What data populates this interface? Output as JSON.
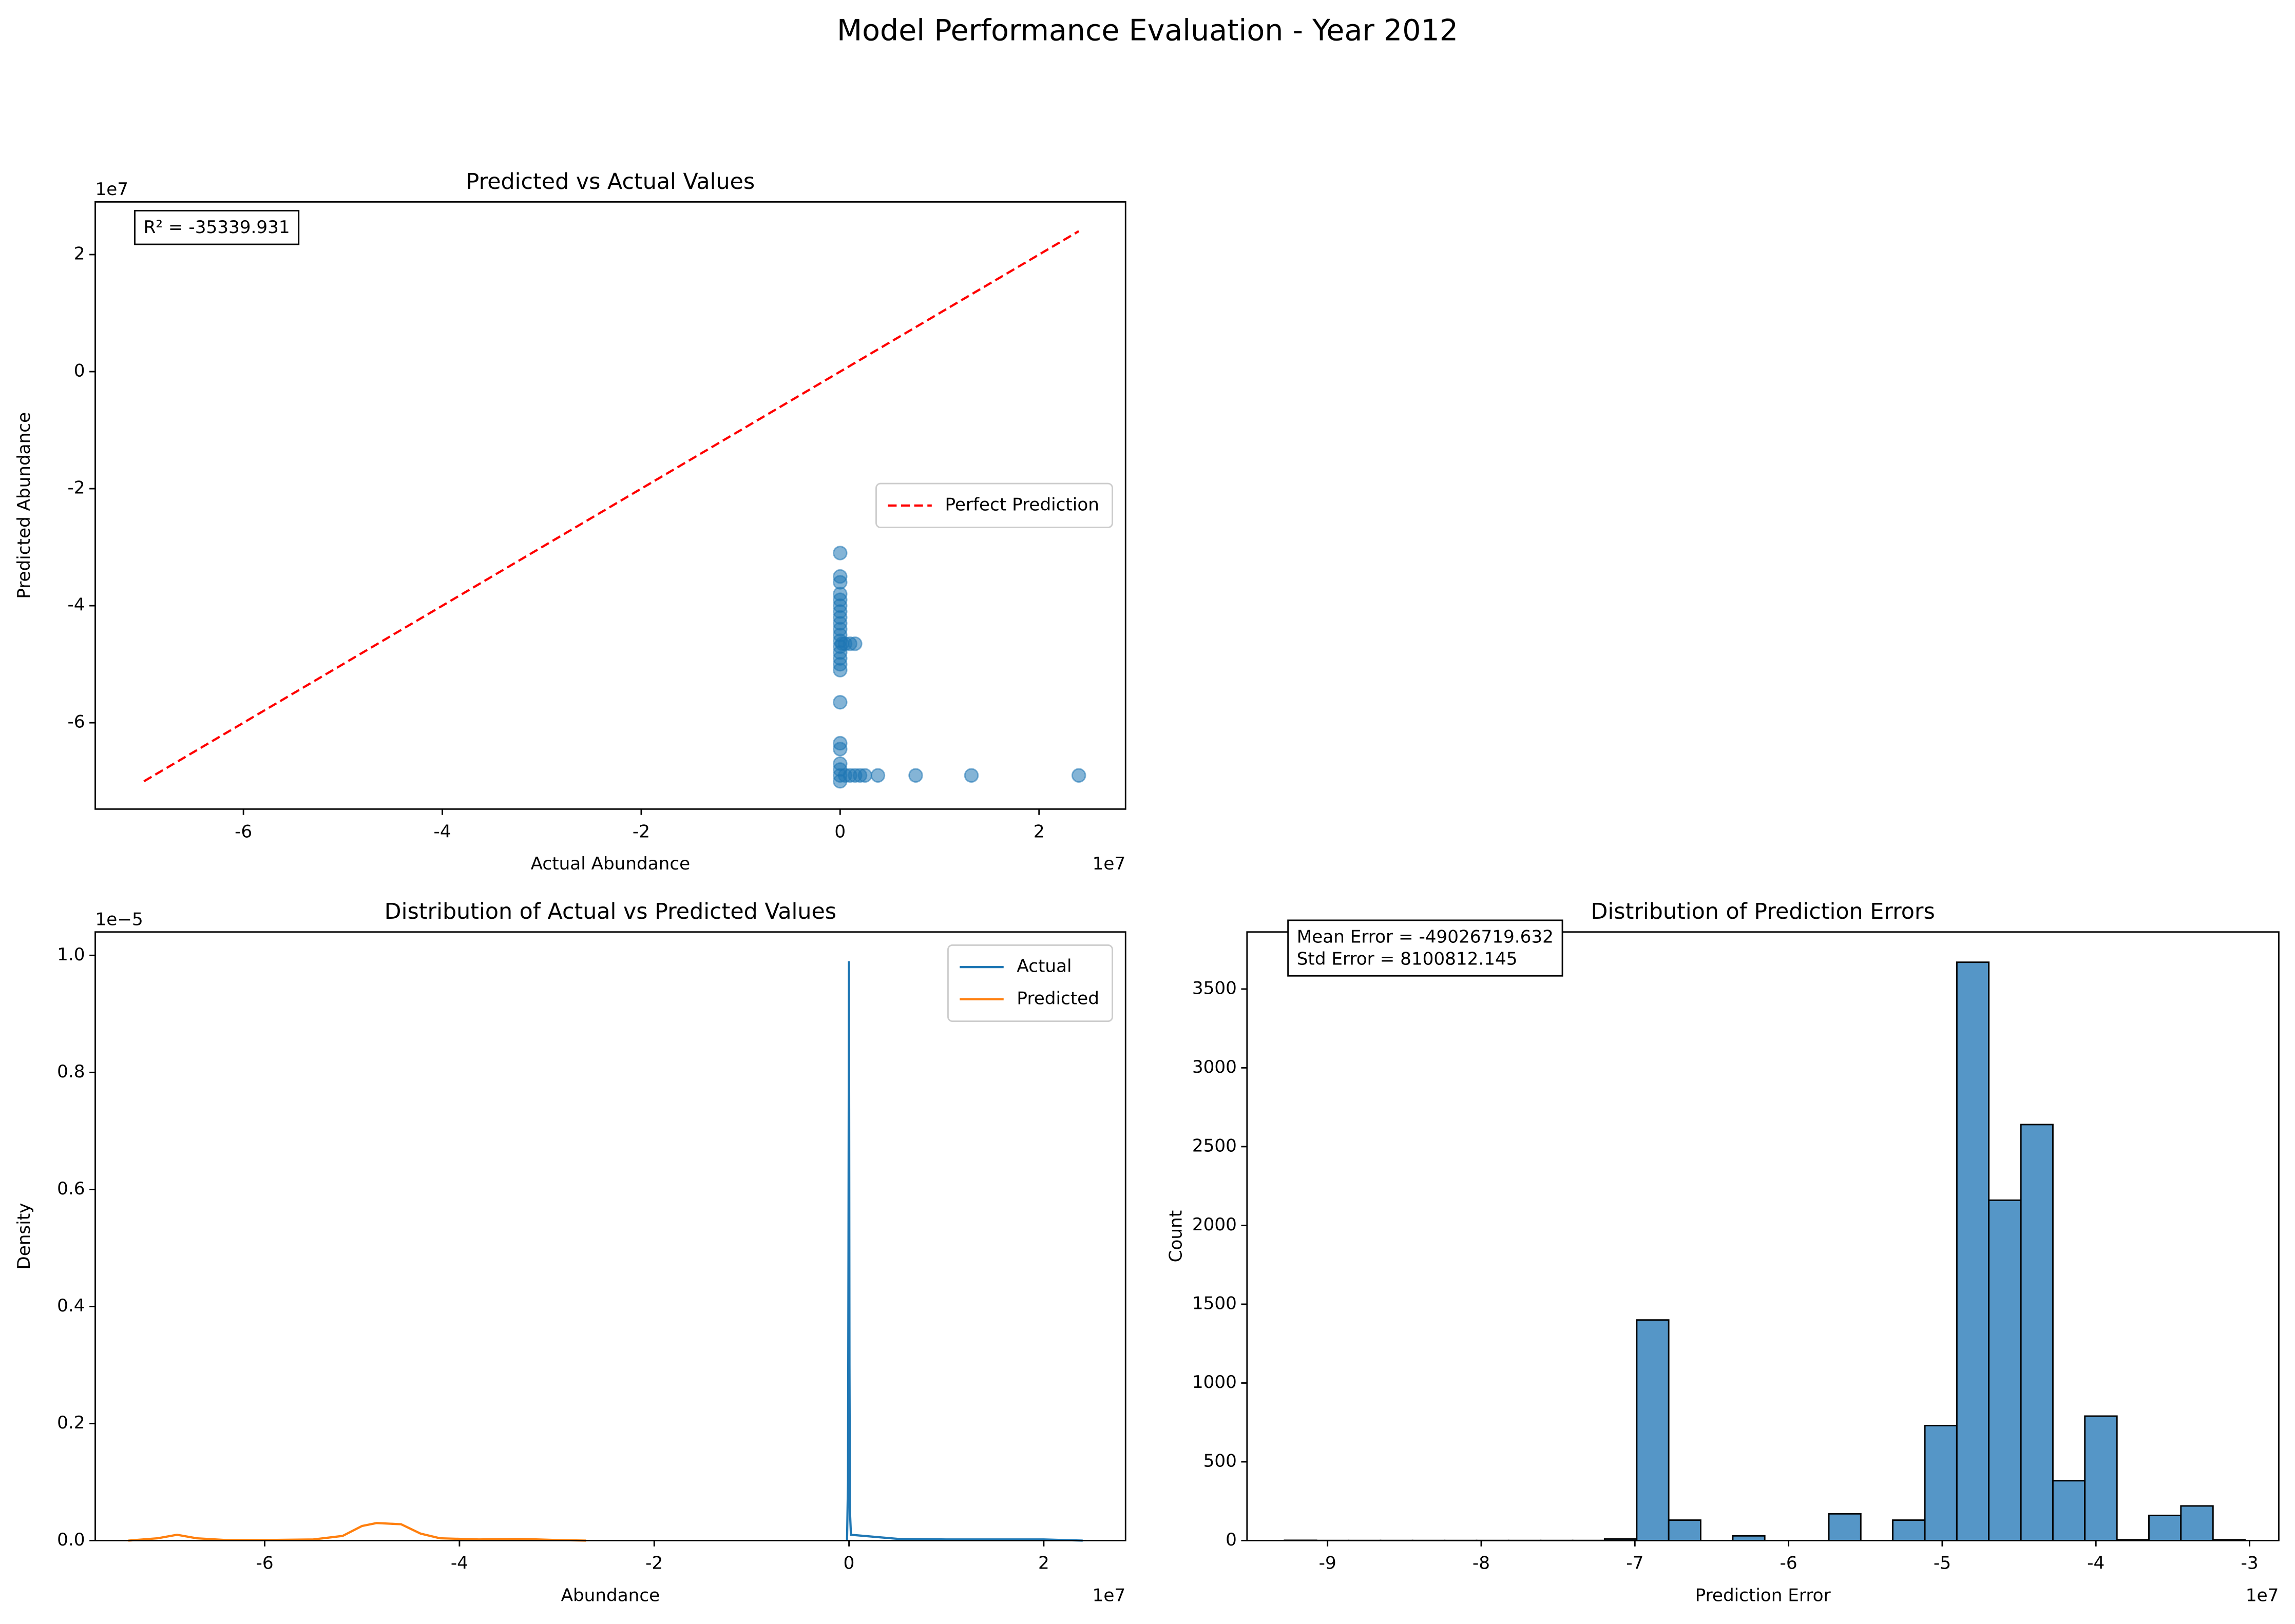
{
  "title": "Model Performance Evaluation - Year 2012",
  "chart_data": [
    {
      "type": "scatter",
      "title": "Predicted vs Actual Values",
      "xlabel": "Actual Abundance",
      "ylabel": "Predicted Abundance",
      "x_offset": "1e7",
      "y_offset": "1e7",
      "xlim": [
        -7.49,
        2.87
      ],
      "ylim": [
        -7.475,
        2.9
      ],
      "xticks": [
        -6,
        -4,
        -2,
        0,
        2
      ],
      "yticks": [
        -6,
        -4,
        -2,
        0,
        2
      ],
      "annotation": [
        "R² = -35339.931"
      ],
      "legend": "center right",
      "series": [
        {
          "kind": "points",
          "color": "#1f77b4",
          "alpha": 0.55,
          "x": [
            0,
            0,
            0,
            0,
            0,
            0,
            0,
            0,
            0,
            0,
            0,
            0,
            0,
            0,
            0,
            0,
            0,
            0,
            0,
            0,
            0,
            0,
            0,
            0,
            0.02,
            0.05,
            0.1,
            0.15,
            0.05,
            0.1,
            0.15,
            0.2,
            0.25,
            0.38,
            0.76,
            1.32,
            2.4
          ],
          "values": [
            -3.1,
            -3.5,
            -3.6,
            -3.8,
            -3.9,
            -4.0,
            -4.1,
            -4.2,
            -4.3,
            -4.4,
            -4.5,
            -4.6,
            -4.7,
            -4.8,
            -4.9,
            -5.0,
            -5.1,
            -5.65,
            -6.35,
            -6.45,
            -6.7,
            -6.8,
            -6.9,
            -7.0,
            -4.65,
            -4.65,
            -4.65,
            -4.65,
            -6.9,
            -6.9,
            -6.9,
            -6.9,
            -6.9,
            -6.9,
            -6.9,
            -6.9,
            -6.9
          ]
        },
        {
          "kind": "line",
          "name": "Perfect Prediction",
          "color": "#ff0000",
          "dashed": true,
          "x": [
            -7,
            2.4
          ],
          "values": [
            -7,
            2.4
          ]
        }
      ]
    },
    {
      "type": "line",
      "title": "Distribution of Actual vs Predicted Values",
      "xlabel": "Abundance",
      "ylabel": "Density",
      "x_offset": "1e7",
      "y_offset": "1e−5",
      "xlim": [
        -7.74,
        2.84
      ],
      "ylim": [
        0,
        1.04
      ],
      "xticks": [
        -6,
        -4,
        -2,
        0,
        2
      ],
      "yticks": [
        {
          "value": 0,
          "label": "0.0"
        },
        0.2,
        0.4,
        0.6,
        0.8,
        {
          "value": 1,
          "label": "1.0"
        }
      ],
      "legend": "upper right",
      "series": [
        {
          "kind": "line",
          "name": "Actual",
          "color": "#1f77b4",
          "x": [
            -0.02,
            -0.01,
            -0.005,
            0,
            0.005,
            0.01,
            0.02,
            0.5,
            1,
            2,
            2.4
          ],
          "values": [
            0,
            0.1,
            0.5,
            0.99,
            0.3,
            0.05,
            0.01,
            0.003,
            0.002,
            0.002,
            0
          ]
        },
        {
          "kind": "line",
          "name": "Predicted",
          "color": "#ff7f0e",
          "x": [
            -7.4,
            -7.1,
            -6.9,
            -6.7,
            -6.4,
            -6.0,
            -5.5,
            -5.2,
            -5.0,
            -4.85,
            -4.6,
            -4.4,
            -4.2,
            -3.8,
            -3.4,
            -3.0,
            -2.7
          ],
          "values": [
            0,
            0.004,
            0.01,
            0.004,
            0.001,
            0.001,
            0.002,
            0.008,
            0.025,
            0.03,
            0.028,
            0.012,
            0.004,
            0.002,
            0.003,
            0.001,
            0
          ]
        }
      ]
    },
    {
      "type": "histogram",
      "title": "Distribution of Prediction Errors",
      "xlabel": "Prediction Error",
      "ylabel": "Count",
      "x_offset": "1e7",
      "xlim": [
        -9.524,
        -2.81
      ],
      "ylim": [
        0,
        3862
      ],
      "xticks": [
        -9,
        -8,
        -7,
        -6,
        -5,
        -4,
        -3
      ],
      "yticks": [
        0,
        500,
        1000,
        1500,
        2000,
        2500,
        3000,
        3500
      ],
      "annotation": [
        "Mean Error = -49026719.632",
        "Std Error = 8100812.145"
      ],
      "color": "#5596c7",
      "bins": [
        -9.28,
        -9.072,
        -8.863,
        -8.655,
        -8.447,
        -8.238,
        -8.03,
        -7.822,
        -7.613,
        -7.405,
        -7.197,
        -6.988,
        -6.78,
        -6.572,
        -6.363,
        -6.155,
        -5.947,
        -5.738,
        -5.53,
        -5.322,
        -5.113,
        -4.905,
        -4.697,
        -4.488,
        -4.28,
        -4.072,
        -3.863,
        -3.655,
        -3.447,
        -3.238,
        -3.03
      ],
      "counts": [
        2,
        1,
        1,
        1,
        1,
        1,
        1,
        1,
        1,
        1,
        10,
        1400,
        130,
        0,
        30,
        0,
        0,
        170,
        0,
        130,
        730,
        3670,
        2160,
        2640,
        380,
        790,
        5,
        160,
        220,
        5
      ]
    }
  ]
}
